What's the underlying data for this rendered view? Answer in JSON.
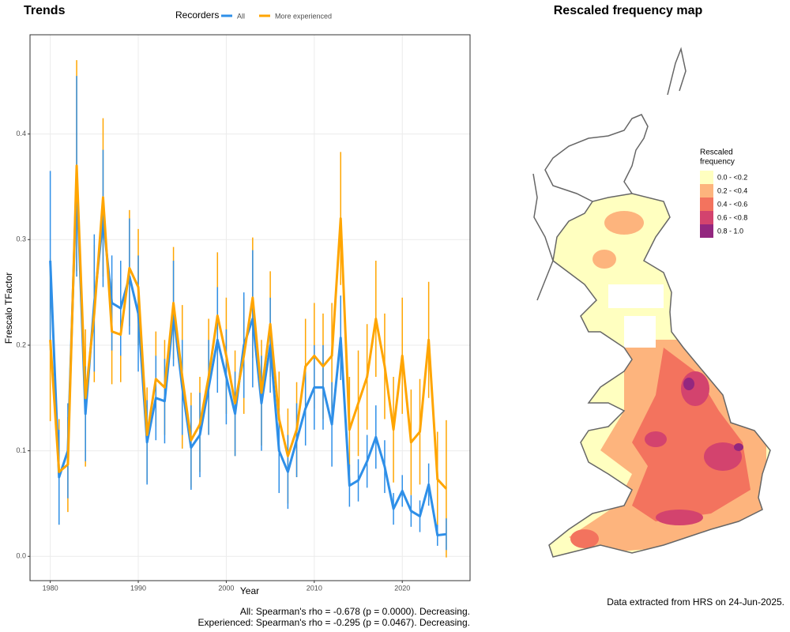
{
  "chart_data": {
    "type": "line",
    "title": "Trends",
    "xlabel": "Year",
    "ylabel": "Frescalo TFactor",
    "legend_title": "Recorders",
    "legend_position": "top",
    "x": [
      1980,
      1981,
      1982,
      1983,
      1984,
      1985,
      1986,
      1987,
      1988,
      1989,
      1990,
      1991,
      1992,
      1993,
      1994,
      1995,
      1996,
      1997,
      1998,
      1999,
      2000,
      2001,
      2002,
      2003,
      2004,
      2005,
      2006,
      2007,
      2008,
      2009,
      2010,
      2011,
      2012,
      2013,
      2014,
      2015,
      2016,
      2017,
      2018,
      2019,
      2020,
      2021,
      2022,
      2023,
      2024,
      2025
    ],
    "series": [
      {
        "name": "All",
        "color": "#2e8fe8",
        "values": [
          0.28,
          0.075,
          0.1,
          0.36,
          0.135,
          0.24,
          0.32,
          0.24,
          0.235,
          0.265,
          0.23,
          0.108,
          0.15,
          0.147,
          0.23,
          0.16,
          0.103,
          0.115,
          0.16,
          0.205,
          0.17,
          0.135,
          0.2,
          0.225,
          0.145,
          0.2,
          0.1,
          0.08,
          0.11,
          0.14,
          0.16,
          0.16,
          0.125,
          0.207,
          0.067,
          0.072,
          0.09,
          0.113,
          0.085,
          0.045,
          0.062,
          0.043,
          0.038,
          0.068,
          0.02,
          0.021
        ],
        "errors": [
          0.085,
          0.045,
          0.045,
          0.095,
          0.045,
          0.065,
          0.065,
          0.045,
          0.045,
          0.055,
          0.055,
          0.04,
          0.04,
          0.04,
          0.05,
          0.045,
          0.04,
          0.04,
          0.045,
          0.05,
          0.045,
          0.04,
          0.05,
          0.065,
          0.045,
          0.045,
          0.04,
          0.035,
          0.035,
          0.035,
          0.04,
          0.04,
          0.04,
          0.04,
          0.02,
          0.02,
          0.025,
          0.03,
          0.025,
          0.015,
          0.015,
          0.015,
          0.015,
          0.02,
          0.01,
          0.015
        ]
      },
      {
        "name": "More experienced",
        "color": "#ffa500",
        "values": [
          0.205,
          0.08,
          0.087,
          0.37,
          0.15,
          0.23,
          0.34,
          0.213,
          0.21,
          0.273,
          0.255,
          0.115,
          0.168,
          0.16,
          0.24,
          0.17,
          0.11,
          0.125,
          0.17,
          0.228,
          0.19,
          0.145,
          0.19,
          0.245,
          0.155,
          0.22,
          0.13,
          0.095,
          0.12,
          0.18,
          0.19,
          0.18,
          0.19,
          0.32,
          0.12,
          0.145,
          0.17,
          0.225,
          0.18,
          0.12,
          0.19,
          0.108,
          0.118,
          0.205,
          0.073,
          0.064
        ],
        "errors": [
          0.077,
          0.05,
          0.045,
          0.1,
          0.065,
          0.065,
          0.075,
          0.05,
          0.045,
          0.055,
          0.055,
          0.045,
          0.045,
          0.045,
          0.053,
          0.068,
          0.045,
          0.045,
          0.055,
          0.06,
          0.055,
          0.05,
          0.055,
          0.057,
          0.05,
          0.05,
          0.045,
          0.045,
          0.045,
          0.045,
          0.05,
          0.05,
          0.05,
          0.063,
          0.05,
          0.05,
          0.05,
          0.055,
          0.05,
          0.05,
          0.055,
          0.05,
          0.05,
          0.055,
          0.045,
          0.065
        ]
      }
    ],
    "xlim": [
      1977.7,
      2027.7
    ],
    "ylim": [
      -0.023,
      0.494
    ],
    "xticks": [
      1980,
      1990,
      2000,
      2010,
      2020
    ],
    "yticks": [
      {
        "value": 0,
        "label": "0.0"
      },
      0.1,
      0.2,
      0.3,
      0.4
    ],
    "grid": true,
    "annotations": [
      "All: Spearman's rho = -0.678 (p = 0.0000). Decreasing.",
      "Experienced: Spearman's rho = -0.295 (p = 0.0467). Decreasing."
    ]
  },
  "map": {
    "title": "Rescaled frequency map",
    "legend_title": [
      "Rescaled",
      "frequency"
    ],
    "legend": [
      {
        "label": "0.0 - <0.2",
        "color": "#ffffc0"
      },
      {
        "label": "0.2 - <0.4",
        "color": "#fdb47d"
      },
      {
        "label": "0.4 - <0.6",
        "color": "#f3735e"
      },
      {
        "label": "0.6 - <0.8",
        "color": "#d3436e"
      },
      {
        "label": "0.8 - 1.0",
        "color": "#93277f"
      }
    ]
  },
  "note": "Data extracted from HRS on 24-Jun-2025."
}
